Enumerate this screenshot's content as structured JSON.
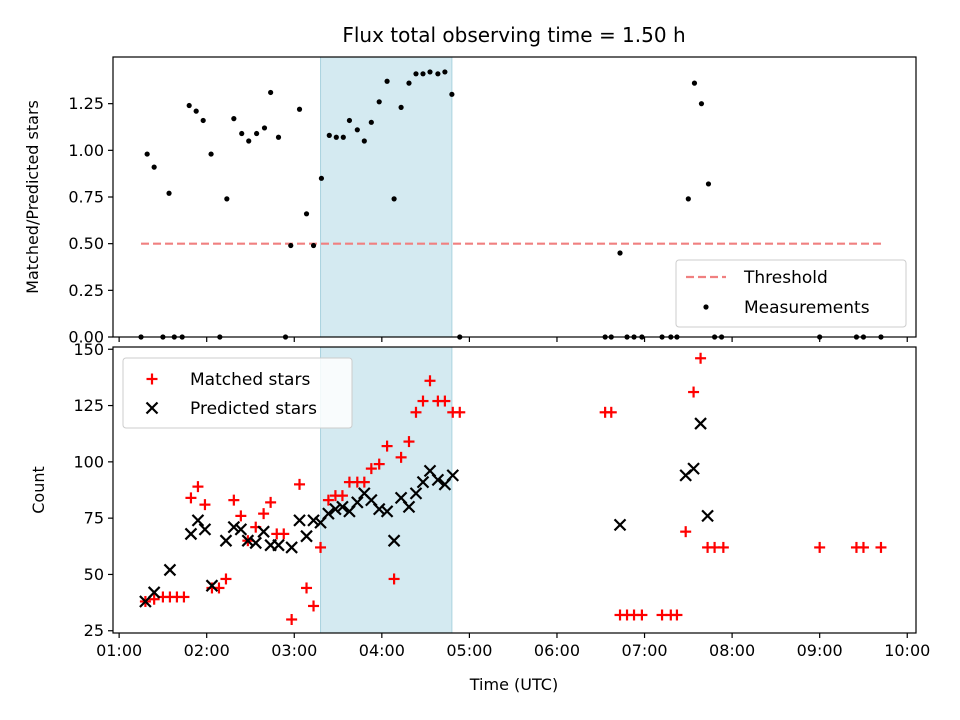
{
  "figure": {
    "title": "Flux total observing time = 1.50 h",
    "xlabel": "Time (UTC)",
    "x_ticks": [
      "01:00",
      "02:00",
      "03:00",
      "04:00",
      "05:00",
      "06:00",
      "07:00",
      "08:00",
      "09:00",
      "10:00"
    ],
    "x_tick_hours": [
      1,
      2,
      3,
      4,
      5,
      6,
      7,
      8,
      9,
      10
    ],
    "xlim_hours": [
      0.93,
      10.1
    ],
    "highlight_span_hours": [
      3.3,
      4.8
    ],
    "colors": {
      "highlight": "#d4eaf1",
      "threshold": "#f08080",
      "measurements": "#000000",
      "matched": "#ff0000",
      "predicted": "#000000"
    }
  },
  "chart_data": [
    {
      "type": "scatter",
      "ylabel": "Matched/Predicted stars",
      "ylim": [
        0,
        1.5
      ],
      "y_ticks": [
        "0.00",
        "0.25",
        "0.50",
        "0.75",
        "1.00",
        "1.25"
      ],
      "y_tick_values": [
        0,
        0.25,
        0.5,
        0.75,
        1.0,
        1.25
      ],
      "legend": {
        "position": "lower-right",
        "entries": [
          "Threshold",
          "Measurements"
        ]
      },
      "threshold": {
        "name": "Threshold",
        "y": 0.5,
        "x_range": [
          1.25,
          9.7
        ]
      },
      "series": [
        {
          "name": "Measurements",
          "points": [
            [
              1.25,
              0
            ],
            [
              1.32,
              0.98
            ],
            [
              1.4,
              0.91
            ],
            [
              1.5,
              0
            ],
            [
              1.57,
              0.77
            ],
            [
              1.63,
              0
            ],
            [
              1.72,
              0
            ],
            [
              1.8,
              1.24
            ],
            [
              1.88,
              1.21
            ],
            [
              1.96,
              1.16
            ],
            [
              2.05,
              0.98
            ],
            [
              2.15,
              0
            ],
            [
              2.23,
              0.74
            ],
            [
              2.31,
              1.17
            ],
            [
              2.4,
              1.09
            ],
            [
              2.48,
              1.05
            ],
            [
              2.57,
              1.09
            ],
            [
              2.66,
              1.12
            ],
            [
              2.73,
              1.31
            ],
            [
              2.82,
              1.07
            ],
            [
              2.9,
              0
            ],
            [
              2.96,
              0.49
            ],
            [
              3.06,
              1.22
            ],
            [
              3.14,
              0.66
            ],
            [
              3.22,
              0.49
            ],
            [
              3.31,
              0.85
            ],
            [
              3.4,
              1.08
            ],
            [
              3.48,
              1.07
            ],
            [
              3.56,
              1.07
            ],
            [
              3.63,
              1.16
            ],
            [
              3.72,
              1.11
            ],
            [
              3.8,
              1.05
            ],
            [
              3.88,
              1.15
            ],
            [
              3.97,
              1.26
            ],
            [
              4.06,
              1.37
            ],
            [
              4.14,
              0.74
            ],
            [
              4.22,
              1.23
            ],
            [
              4.31,
              1.36
            ],
            [
              4.39,
              1.41
            ],
            [
              4.47,
              1.41
            ],
            [
              4.55,
              1.42
            ],
            [
              4.64,
              1.41
            ],
            [
              4.72,
              1.42
            ],
            [
              4.8,
              1.3
            ],
            [
              4.89,
              0
            ],
            [
              6.55,
              0
            ],
            [
              6.62,
              0
            ],
            [
              6.72,
              0.45
            ],
            [
              6.8,
              0
            ],
            [
              6.88,
              0
            ],
            [
              6.97,
              0
            ],
            [
              7.2,
              0
            ],
            [
              7.3,
              0
            ],
            [
              7.37,
              0
            ],
            [
              7.5,
              0.74
            ],
            [
              7.57,
              1.36
            ],
            [
              7.65,
              1.25
            ],
            [
              7.73,
              0.82
            ],
            [
              7.8,
              0
            ],
            [
              7.88,
              0
            ],
            [
              9.0,
              0
            ],
            [
              9.42,
              0
            ],
            [
              9.5,
              0
            ],
            [
              9.7,
              0
            ]
          ]
        }
      ]
    },
    {
      "type": "scatter",
      "ylabel": "Count",
      "ylim": [
        24,
        151
      ],
      "y_ticks": [
        "25",
        "50",
        "75",
        "100",
        "125",
        "150"
      ],
      "y_tick_values": [
        25,
        50,
        75,
        100,
        125,
        150
      ],
      "legend": {
        "position": "upper-left",
        "entries": [
          "Matched stars",
          "Predicted stars"
        ]
      },
      "series": [
        {
          "name": "Matched stars",
          "points": [
            [
              1.3,
              38
            ],
            [
              1.4,
              39
            ],
            [
              1.5,
              40
            ],
            [
              1.58,
              40
            ],
            [
              1.66,
              40
            ],
            [
              1.74,
              40
            ],
            [
              1.82,
              84
            ],
            [
              1.9,
              89
            ],
            [
              1.98,
              81
            ],
            [
              2.06,
              44
            ],
            [
              2.14,
              44
            ],
            [
              2.22,
              48
            ],
            [
              2.31,
              83
            ],
            [
              2.39,
              76
            ],
            [
              2.47,
              65
            ],
            [
              2.56,
              71
            ],
            [
              2.65,
              77
            ],
            [
              2.73,
              82
            ],
            [
              2.8,
              68
            ],
            [
              2.88,
              68
            ],
            [
              2.97,
              30
            ],
            [
              3.06,
              90
            ],
            [
              3.14,
              44
            ],
            [
              3.22,
              36
            ],
            [
              3.3,
              62
            ],
            [
              3.39,
              83
            ],
            [
              3.47,
              85
            ],
            [
              3.55,
              85
            ],
            [
              3.63,
              91
            ],
            [
              3.72,
              91
            ],
            [
              3.8,
              91
            ],
            [
              3.88,
              97
            ],
            [
              3.97,
              99
            ],
            [
              4.06,
              107
            ],
            [
              4.14,
              48
            ],
            [
              4.22,
              102
            ],
            [
              4.31,
              109
            ],
            [
              4.39,
              122
            ],
            [
              4.47,
              127
            ],
            [
              4.55,
              136
            ],
            [
              4.64,
              127
            ],
            [
              4.72,
              127
            ],
            [
              4.81,
              122
            ],
            [
              4.89,
              122
            ],
            [
              6.55,
              122
            ],
            [
              6.62,
              122
            ],
            [
              6.72,
              32
            ],
            [
              6.8,
              32
            ],
            [
              6.88,
              32
            ],
            [
              6.97,
              32
            ],
            [
              7.2,
              32
            ],
            [
              7.3,
              32
            ],
            [
              7.37,
              32
            ],
            [
              7.47,
              69
            ],
            [
              7.56,
              131
            ],
            [
              7.64,
              146
            ],
            [
              7.72,
              62
            ],
            [
              7.8,
              62
            ],
            [
              7.9,
              62
            ],
            [
              9.0,
              62
            ],
            [
              9.42,
              62
            ],
            [
              9.5,
              62
            ],
            [
              9.7,
              62
            ]
          ]
        },
        {
          "name": "Predicted stars",
          "points": [
            [
              1.3,
              38
            ],
            [
              1.4,
              42
            ],
            [
              1.58,
              52
            ],
            [
              1.82,
              68
            ],
            [
              1.9,
              74
            ],
            [
              1.98,
              70
            ],
            [
              2.06,
              45
            ],
            [
              2.22,
              65
            ],
            [
              2.31,
              71
            ],
            [
              2.39,
              70
            ],
            [
              2.47,
              65
            ],
            [
              2.56,
              64
            ],
            [
              2.65,
              69
            ],
            [
              2.73,
              63
            ],
            [
              2.82,
              63
            ],
            [
              2.97,
              62
            ],
            [
              3.06,
              74
            ],
            [
              3.14,
              67
            ],
            [
              3.22,
              74
            ],
            [
              3.3,
              73
            ],
            [
              3.39,
              77
            ],
            [
              3.47,
              79
            ],
            [
              3.55,
              80
            ],
            [
              3.63,
              78
            ],
            [
              3.72,
              82
            ],
            [
              3.8,
              86
            ],
            [
              3.88,
              83
            ],
            [
              3.97,
              79
            ],
            [
              4.06,
              78
            ],
            [
              4.14,
              65
            ],
            [
              4.22,
              84
            ],
            [
              4.31,
              80
            ],
            [
              4.39,
              86
            ],
            [
              4.47,
              91
            ],
            [
              4.55,
              96
            ],
            [
              4.64,
              92
            ],
            [
              4.72,
              90
            ],
            [
              4.81,
              94
            ],
            [
              6.72,
              72
            ],
            [
              7.47,
              94
            ],
            [
              7.56,
              97
            ],
            [
              7.64,
              117
            ],
            [
              7.72,
              76
            ]
          ]
        }
      ]
    }
  ]
}
